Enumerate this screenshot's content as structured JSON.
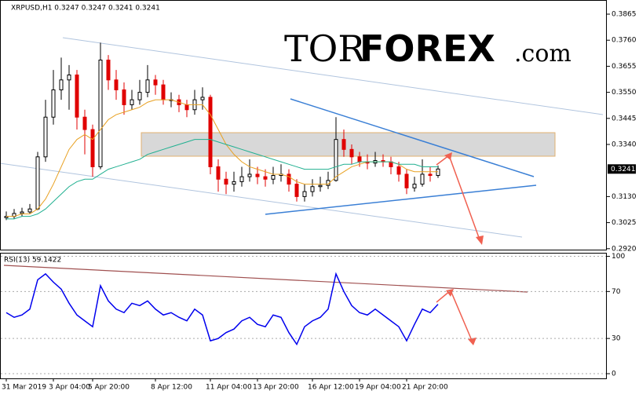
{
  "logo": {
    "part1": "TOR",
    "part2": "FOREX",
    "part3": ".com"
  },
  "chart_data": [
    {
      "type": "candlestick",
      "title": "XRPUSD,H1  0.3247 0.3247 0.3241 0.3241",
      "categories": [
        "31 Mar 2019",
        null,
        null,
        null,
        null,
        null,
        "3 Apr 04:00",
        null,
        null,
        null,
        null,
        "5 Apr 20:00",
        null,
        null,
        null,
        null,
        null,
        null,
        null,
        "8 Apr 12:00",
        null,
        null,
        null,
        null,
        null,
        null,
        "11 Apr 04:00",
        null,
        null,
        null,
        null,
        null,
        "13 Apr 20:00",
        null,
        null,
        null,
        null,
        null,
        null,
        "16 Apr 12:00",
        null,
        null,
        null,
        null,
        null,
        "19 Apr 04:00",
        null,
        null,
        null,
        null,
        null,
        "21 Apr 20:00",
        null,
        null,
        null,
        null
      ],
      "open": [
        0.3045,
        0.305,
        0.3062,
        0.3068,
        0.308,
        0.329,
        0.345,
        0.356,
        0.36,
        0.362,
        0.345,
        0.34,
        0.325,
        0.368,
        0.36,
        0.356,
        0.35,
        0.352,
        0.355,
        0.36,
        0.358,
        0.352,
        0.352,
        0.35,
        0.348,
        0.352,
        0.353,
        0.325,
        0.32,
        0.318,
        0.319,
        0.321,
        0.322,
        0.321,
        0.32,
        0.3215,
        0.322,
        0.318,
        0.313,
        0.315,
        0.317,
        0.3175,
        0.3195,
        0.336,
        0.332,
        0.329,
        0.327,
        0.3265,
        0.3275,
        0.327,
        0.325,
        0.322,
        0.3165,
        0.318,
        0.322,
        0.3215
      ],
      "high": [
        0.307,
        0.308,
        0.3085,
        0.31,
        0.331,
        0.352,
        0.364,
        0.369,
        0.366,
        0.364,
        0.348,
        0.342,
        0.375,
        0.37,
        0.364,
        0.359,
        0.356,
        0.36,
        0.366,
        0.362,
        0.36,
        0.355,
        0.354,
        0.352,
        0.356,
        0.357,
        0.354,
        0.328,
        0.323,
        0.323,
        0.325,
        0.328,
        0.325,
        0.324,
        0.325,
        0.326,
        0.324,
        0.32,
        0.318,
        0.32,
        0.321,
        0.323,
        0.345,
        0.34,
        0.334,
        0.331,
        0.33,
        0.331,
        0.33,
        0.329,
        0.327,
        0.324,
        0.321,
        0.328,
        0.325,
        0.3255
      ],
      "low": [
        0.3035,
        0.304,
        0.305,
        0.306,
        0.3075,
        0.327,
        0.342,
        0.352,
        0.348,
        0.34,
        0.33,
        0.321,
        0.324,
        0.356,
        0.352,
        0.346,
        0.348,
        0.35,
        0.353,
        0.354,
        0.35,
        0.349,
        0.347,
        0.345,
        0.346,
        0.348,
        0.322,
        0.315,
        0.314,
        0.315,
        0.317,
        0.319,
        0.318,
        0.317,
        0.318,
        0.319,
        0.315,
        0.311,
        0.311,
        0.313,
        0.315,
        0.316,
        0.319,
        0.329,
        0.326,
        0.325,
        0.324,
        0.325,
        0.325,
        0.322,
        0.319,
        0.314,
        0.315,
        0.317,
        0.319,
        0.3205
      ],
      "close": [
        0.305,
        0.3062,
        0.3068,
        0.308,
        0.329,
        0.345,
        0.356,
        0.36,
        0.362,
        0.345,
        0.34,
        0.325,
        0.368,
        0.36,
        0.356,
        0.35,
        0.352,
        0.355,
        0.36,
        0.358,
        0.352,
        0.352,
        0.35,
        0.348,
        0.352,
        0.353,
        0.325,
        0.32,
        0.318,
        0.319,
        0.321,
        0.322,
        0.321,
        0.32,
        0.3215,
        0.322,
        0.318,
        0.313,
        0.315,
        0.317,
        0.3175,
        0.3195,
        0.336,
        0.332,
        0.329,
        0.327,
        0.3265,
        0.3275,
        0.327,
        0.325,
        0.322,
        0.3165,
        0.318,
        0.322,
        0.3215,
        0.3241
      ],
      "up_color": "#000000",
      "down_color": "#e00000",
      "series": [
        {
          "name": "MA fast",
          "color": "#e8a020",
          "values": [
            0.305,
            0.305,
            0.306,
            0.306,
            0.308,
            0.312,
            0.318,
            0.325,
            0.332,
            0.336,
            0.338,
            0.336,
            0.34,
            0.344,
            0.346,
            0.347,
            0.348,
            0.349,
            0.351,
            0.352,
            0.352,
            0.352,
            0.351,
            0.35,
            0.35,
            0.35,
            0.346,
            0.34,
            0.334,
            0.33,
            0.327,
            0.325,
            0.324,
            0.323,
            0.322,
            0.322,
            0.321,
            0.319,
            0.318,
            0.318,
            0.318,
            0.318,
            0.321,
            0.323,
            0.325,
            0.326,
            0.327,
            0.327,
            0.327,
            0.327,
            0.326,
            0.324,
            0.323,
            0.323,
            0.323,
            0.323
          ]
        },
        {
          "name": "MA slow",
          "color": "#20b090",
          "values": [
            0.304,
            0.304,
            0.305,
            0.305,
            0.306,
            0.308,
            0.311,
            0.314,
            0.317,
            0.319,
            0.32,
            0.32,
            0.322,
            0.324,
            0.325,
            0.326,
            0.327,
            0.328,
            0.33,
            0.331,
            0.332,
            0.333,
            0.334,
            0.335,
            0.336,
            0.336,
            0.336,
            0.335,
            0.334,
            0.333,
            0.332,
            0.331,
            0.33,
            0.329,
            0.328,
            0.327,
            0.326,
            0.325,
            0.324,
            0.324,
            0.324,
            0.324,
            0.325,
            0.326,
            0.326,
            0.327,
            0.327,
            0.327,
            0.327,
            0.327,
            0.326,
            0.326,
            0.326,
            0.325,
            0.325,
            0.325
          ]
        }
      ],
      "last_price": 0.3241,
      "ylim": [
        0.2913,
        0.3922
      ],
      "yticks": [
        0.3865,
        {
          "value": 0.376,
          "label": "0.3760"
        },
        0.3655,
        {
          "value": 0.355,
          "label": "0.3550"
        },
        0.3445,
        {
          "value": 0.334,
          "label": "0.3340"
        },
        {
          "value": 0.313,
          "label": "0.3130"
        },
        0.3025,
        {
          "value": 0.292,
          "label": "0.2920"
        }
      ]
    },
    {
      "type": "line",
      "title": "RSI(13) 59.1422",
      "color": "#0000ee",
      "values": [
        52,
        48,
        50,
        55,
        80,
        85,
        78,
        72,
        60,
        50,
        45,
        40,
        75,
        62,
        55,
        52,
        60,
        58,
        62,
        55,
        50,
        52,
        48,
        45,
        55,
        50,
        28,
        30,
        35,
        38,
        45,
        48,
        42,
        40,
        50,
        48,
        35,
        25,
        40,
        45,
        48,
        55,
        85,
        70,
        58,
        52,
        50,
        55,
        50,
        45,
        40,
        28,
        42,
        55,
        52,
        59.1422
      ],
      "ylim": [
        -4,
        103
      ],
      "yticks": [
        100,
        70,
        30,
        0
      ],
      "grid": true
    }
  ]
}
